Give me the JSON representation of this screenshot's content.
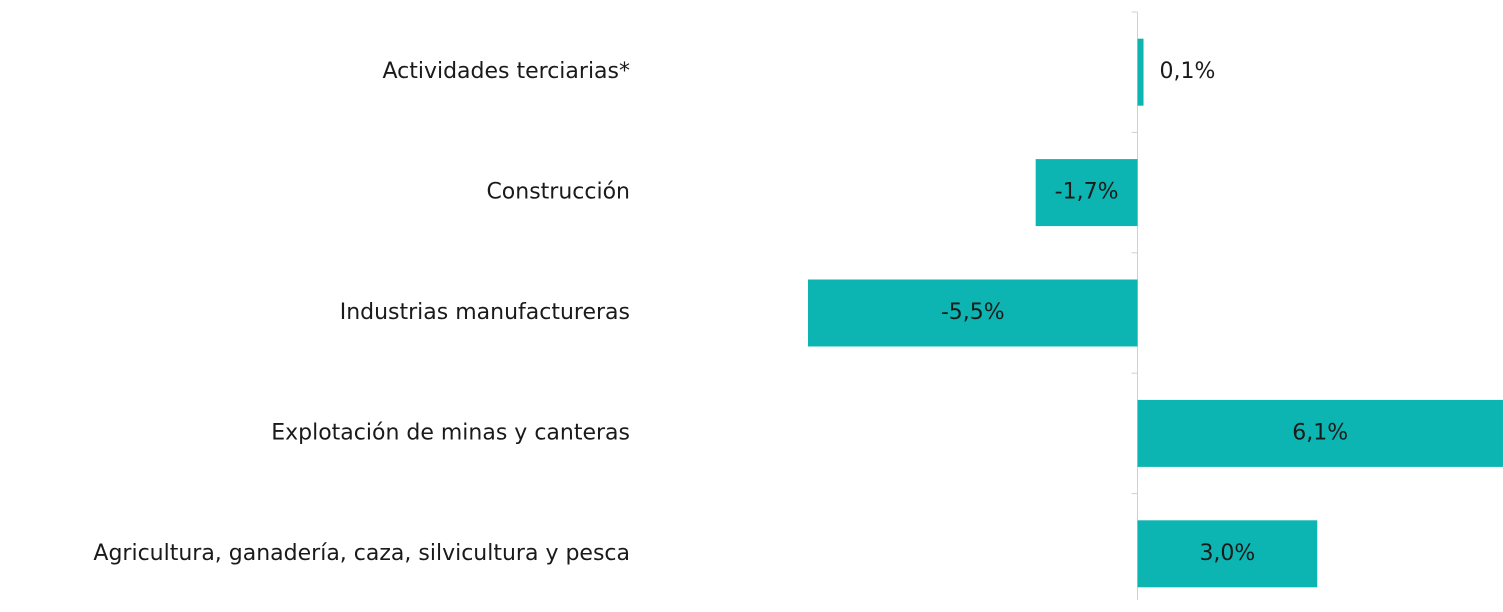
{
  "chart_data": {
    "type": "bar",
    "orientation": "horizontal",
    "categories": [
      "Actividades terciarias*",
      "Construcción",
      "Industrias manufactureras",
      "Explotación de minas y canteras",
      "Agricultura, ganadería, caza, silvicultura y pesca"
    ],
    "values": [
      0.1,
      -1.7,
      -5.5,
      6.1,
      3.0
    ],
    "value_labels": [
      "0,1%",
      "-1,7%",
      "-5,5%",
      "6,1%",
      "3,0%"
    ],
    "color": "#0cb5b1",
    "xlim": [
      -5.5,
      6.1
    ]
  }
}
